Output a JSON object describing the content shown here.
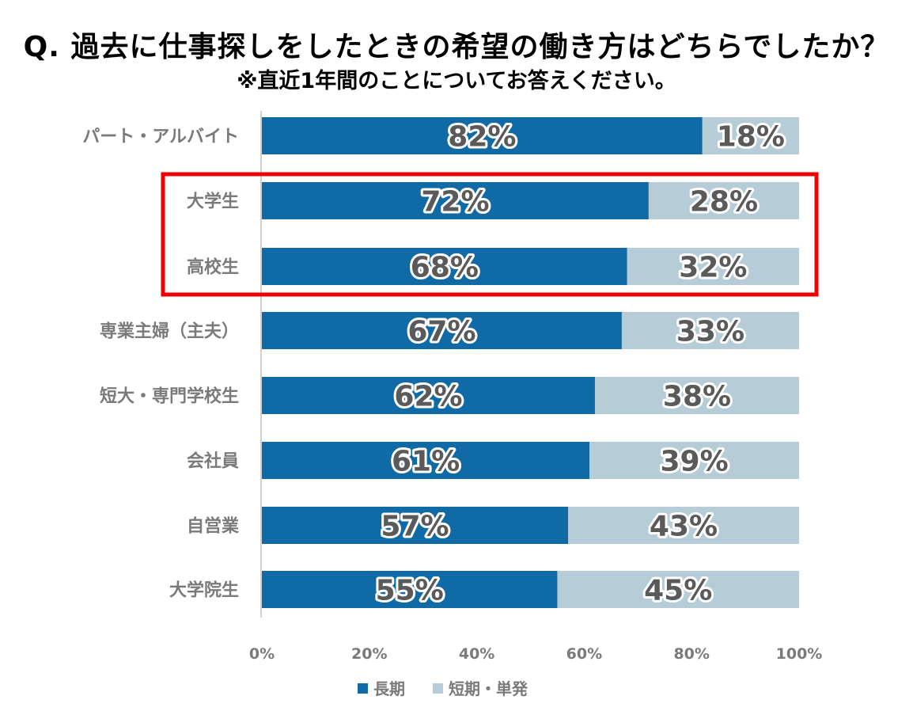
{
  "title": "Q. 過去に仕事探しをしたときの希望の働き方はどちらでしたか？",
  "subtitle": "※直近1年間のことについてお答えください。",
  "colors": {
    "long": "#0f6aa6",
    "short": "#b6ccd7",
    "highlight": "#ee0000",
    "axis": "#d0d0d0"
  },
  "chart_data": {
    "type": "bar",
    "orientation": "horizontal",
    "stacked": true,
    "categories": [
      "パート・アルバイト",
      "大学生",
      "高校生",
      "専業主婦（主夫）",
      "短大・専門学校生",
      "会社員",
      "自営業",
      "大学院生"
    ],
    "series": [
      {
        "name": "長期",
        "values": [
          82,
          72,
          68,
          67,
          62,
          61,
          57,
          55
        ],
        "labels": [
          "82%",
          "72%",
          "68%",
          "67%",
          "62%",
          "61%",
          "57%",
          "55%"
        ]
      },
      {
        "name": "短期・単発",
        "values": [
          18,
          28,
          32,
          33,
          38,
          39,
          43,
          45
        ],
        "labels": [
          "18%",
          "28%",
          "32%",
          "33%",
          "38%",
          "39%",
          "43%",
          "45%"
        ]
      }
    ],
    "xlim": [
      0,
      100
    ],
    "xticks": [
      "0%",
      "20%",
      "40%",
      "60%",
      "80%",
      "100%"
    ],
    "legend_position": "bottom",
    "highlighted_categories": [
      "大学生",
      "高校生"
    ]
  }
}
